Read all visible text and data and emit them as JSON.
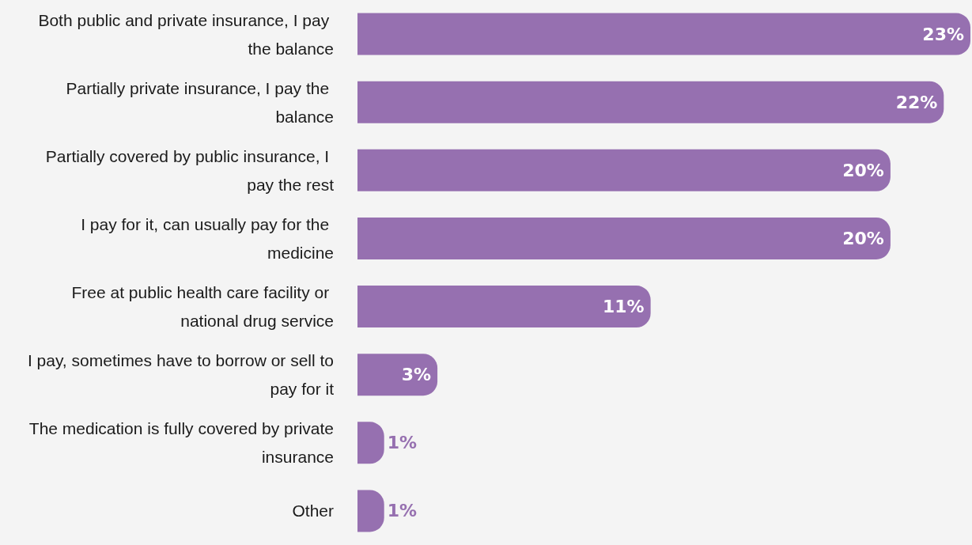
{
  "chart_data": {
    "type": "bar",
    "orientation": "horizontal",
    "categories": [
      "Both public and private insurance, I pay the balance",
      "Partially private insurance, I pay the balance",
      "Partially covered by public insurance, I pay the rest",
      "I pay for it, can usually pay for the medicine",
      "Free at public health care facility or national drug service",
      "I pay, sometimes have to borrow or sell to pay for it",
      "The medication is fully covered by private insurance",
      "Other"
    ],
    "values": [
      23,
      22,
      20,
      20,
      11,
      3,
      1,
      1
    ],
    "value_labels": [
      "23%",
      "22%",
      "20%",
      "20%",
      "11%",
      "3%",
      "1%",
      "1%"
    ],
    "color": "#9670b0"
  }
}
